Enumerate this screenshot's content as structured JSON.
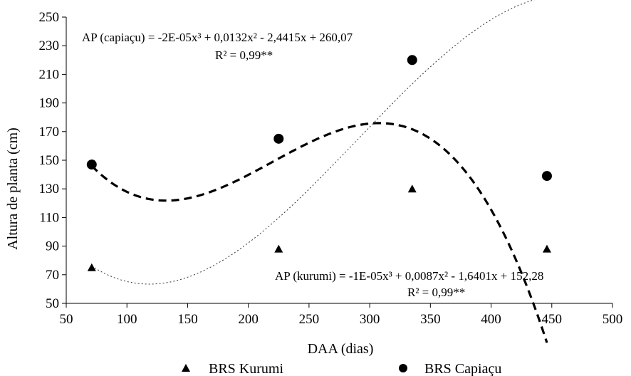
{
  "chart_data": {
    "type": "scatter",
    "xlabel": "DAA (dias)",
    "ylabel": "Altura de planta (cm)",
    "xlim": [
      50,
      500
    ],
    "ylim": [
      50,
      250
    ],
    "xticks": [
      50,
      100,
      150,
      200,
      250,
      300,
      350,
      400,
      450,
      500
    ],
    "yticks": [
      50,
      70,
      90,
      110,
      130,
      150,
      170,
      190,
      210,
      230,
      250
    ],
    "grid": false,
    "legend_position": "bottom",
    "series": [
      {
        "name": "BRS Kurumi",
        "marker": "triangle",
        "line_style": "dotted-thin",
        "x": [
          71,
          225,
          335,
          446
        ],
        "y": [
          75,
          88,
          130,
          88
        ],
        "equation": "AP (kurumi) = -1E-05x³ + 0,0087x² - 1,6401x + 152,28",
        "r2": "R² = 0,99**",
        "coef": [
          -1e-05,
          0.0087,
          -1.6401,
          152.28
        ]
      },
      {
        "name": "BRS Capiaçu",
        "marker": "circle",
        "line_style": "dashed-thick",
        "x": [
          71,
          225,
          335,
          446
        ],
        "y": [
          147,
          165,
          220,
          139
        ],
        "equation": "AP (capiaçu) = -2E-05x³ + 0,0132x² - 2,4415x + 260,07",
        "r2": "R² = 0,99**",
        "coef": [
          -2e-05,
          0.0132,
          -2.4415,
          260.07
        ]
      }
    ]
  }
}
